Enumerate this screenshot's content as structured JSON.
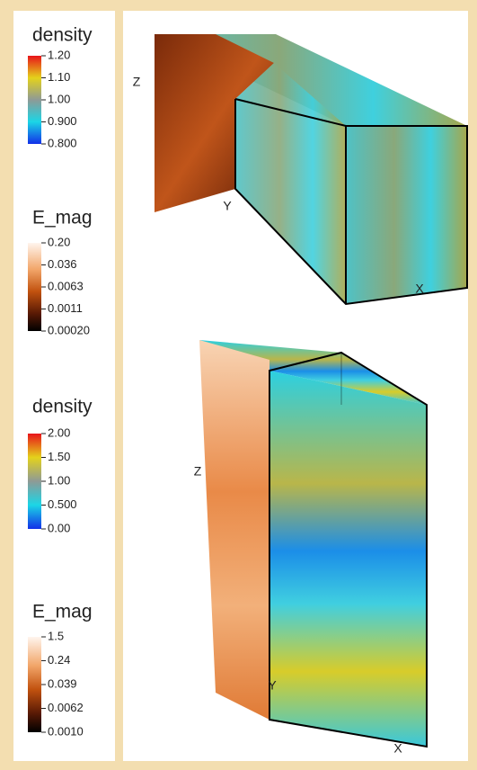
{
  "colorbars": [
    {
      "title": "density",
      "ticks": [
        "1.20",
        "1.10",
        "1.00",
        "0.900",
        "0.800"
      ]
    },
    {
      "title": "E_mag",
      "ticks": [
        "0.20",
        "0.036",
        "0.0063",
        "0.0011",
        "0.00020"
      ]
    },
    {
      "title": "density",
      "ticks": [
        "2.00",
        "1.50",
        "1.00",
        "0.500",
        "0.00"
      ]
    },
    {
      "title": "E_mag",
      "ticks": [
        "1.5",
        "0.24",
        "0.039",
        "0.0062",
        "0.0010"
      ]
    }
  ],
  "volumes": [
    {
      "axes": [
        "Z",
        "Y",
        "X"
      ]
    },
    {
      "axes": [
        "Z",
        "Y",
        "X"
      ]
    }
  ]
}
